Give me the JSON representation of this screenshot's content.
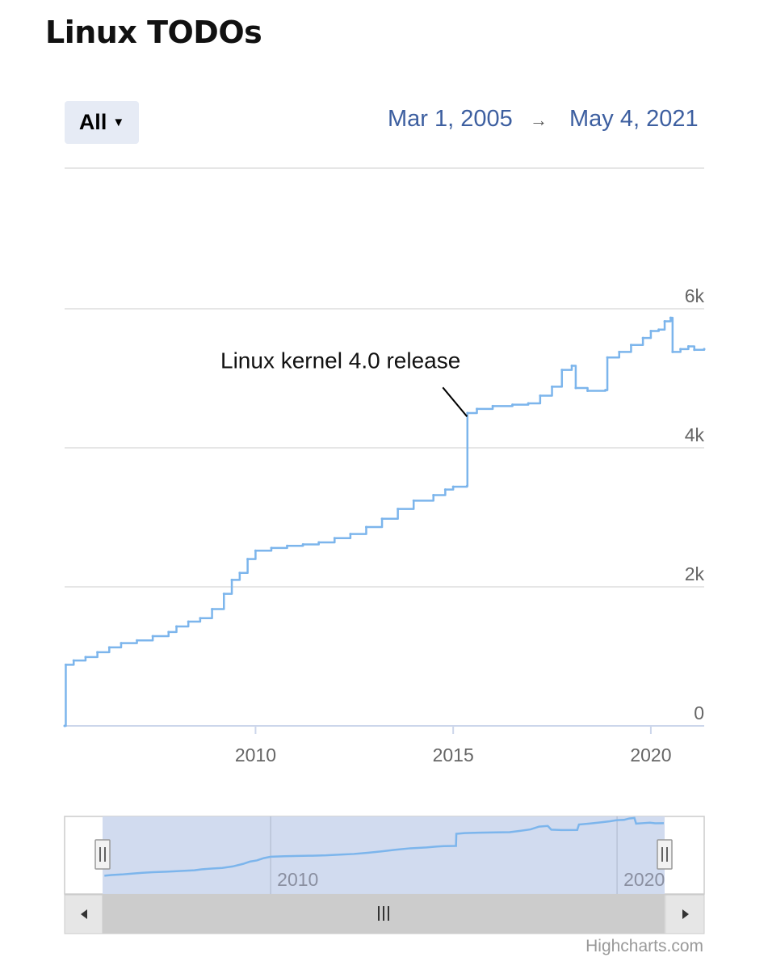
{
  "title": "Linux TODOs",
  "range_selector": {
    "selected": "All"
  },
  "date_range": {
    "from": "Mar 1, 2005",
    "arrow": "→",
    "to": "May 4, 2021"
  },
  "credit": "Highcharts.com",
  "colors": {
    "series": "#7cb5ec",
    "navigator_mask": "#cfd9ee",
    "accent_text": "#3d5fa0"
  },
  "chart_data": {
    "type": "line",
    "title": "Linux TODOs",
    "xlabel": "",
    "ylabel": "",
    "x_range": [
      2005.17,
      2021.35
    ],
    "ylim": [
      0,
      6000
    ],
    "yticks": [
      {
        "value": 0,
        "label": "0"
      },
      {
        "value": 2000,
        "label": "2k"
      },
      {
        "value": 4000,
        "label": "4k"
      },
      {
        "value": 6000,
        "label": "6k"
      }
    ],
    "xticks": [
      {
        "value": 2010,
        "label": "2010"
      },
      {
        "value": 2015,
        "label": "2015"
      },
      {
        "value": 2020,
        "label": "2020"
      }
    ],
    "series": [
      {
        "style": "step",
        "points": [
          [
            2005.17,
            0
          ],
          [
            2005.2,
            880
          ],
          [
            2005.4,
            940
          ],
          [
            2005.7,
            990
          ],
          [
            2006.0,
            1060
          ],
          [
            2006.3,
            1130
          ],
          [
            2006.6,
            1190
          ],
          [
            2007.0,
            1230
          ],
          [
            2007.4,
            1290
          ],
          [
            2007.8,
            1350
          ],
          [
            2008.0,
            1430
          ],
          [
            2008.3,
            1500
          ],
          [
            2008.6,
            1550
          ],
          [
            2008.9,
            1680
          ],
          [
            2009.2,
            1900
          ],
          [
            2009.4,
            2100
          ],
          [
            2009.6,
            2200
          ],
          [
            2009.8,
            2400
          ],
          [
            2010.0,
            2520
          ],
          [
            2010.4,
            2560
          ],
          [
            2010.8,
            2590
          ],
          [
            2011.2,
            2610
          ],
          [
            2011.6,
            2640
          ],
          [
            2012.0,
            2700
          ],
          [
            2012.4,
            2760
          ],
          [
            2012.8,
            2860
          ],
          [
            2013.2,
            2980
          ],
          [
            2013.6,
            3120
          ],
          [
            2014.0,
            3240
          ],
          [
            2014.5,
            3320
          ],
          [
            2014.8,
            3400
          ],
          [
            2015.0,
            3440
          ],
          [
            2015.35,
            3450
          ],
          [
            2015.36,
            4500
          ],
          [
            2015.6,
            4560
          ],
          [
            2016.0,
            4600
          ],
          [
            2016.5,
            4620
          ],
          [
            2016.9,
            4640
          ],
          [
            2017.2,
            4750
          ],
          [
            2017.5,
            4880
          ],
          [
            2017.75,
            5120
          ],
          [
            2018.0,
            5180
          ],
          [
            2018.1,
            4860
          ],
          [
            2018.4,
            4820
          ],
          [
            2018.85,
            4830
          ],
          [
            2018.9,
            5300
          ],
          [
            2019.2,
            5380
          ],
          [
            2019.5,
            5480
          ],
          [
            2019.8,
            5580
          ],
          [
            2020.0,
            5680
          ],
          [
            2020.2,
            5700
          ],
          [
            2020.35,
            5820
          ],
          [
            2020.5,
            5870
          ],
          [
            2020.55,
            5380
          ],
          [
            2020.75,
            5420
          ],
          [
            2020.95,
            5460
          ],
          [
            2021.1,
            5410
          ],
          [
            2021.35,
            5420
          ]
        ]
      }
    ],
    "annotations": [
      {
        "text": "Linux kernel 4.0 release",
        "x": 2015.35,
        "y": 4450
      }
    ],
    "navigator": {
      "xticks": [
        {
          "value": 2010,
          "label": "2010"
        },
        {
          "value": 2020,
          "label": "2020"
        }
      ],
      "selected_range": [
        2005.17,
        2021.35
      ]
    },
    "grid": true
  }
}
